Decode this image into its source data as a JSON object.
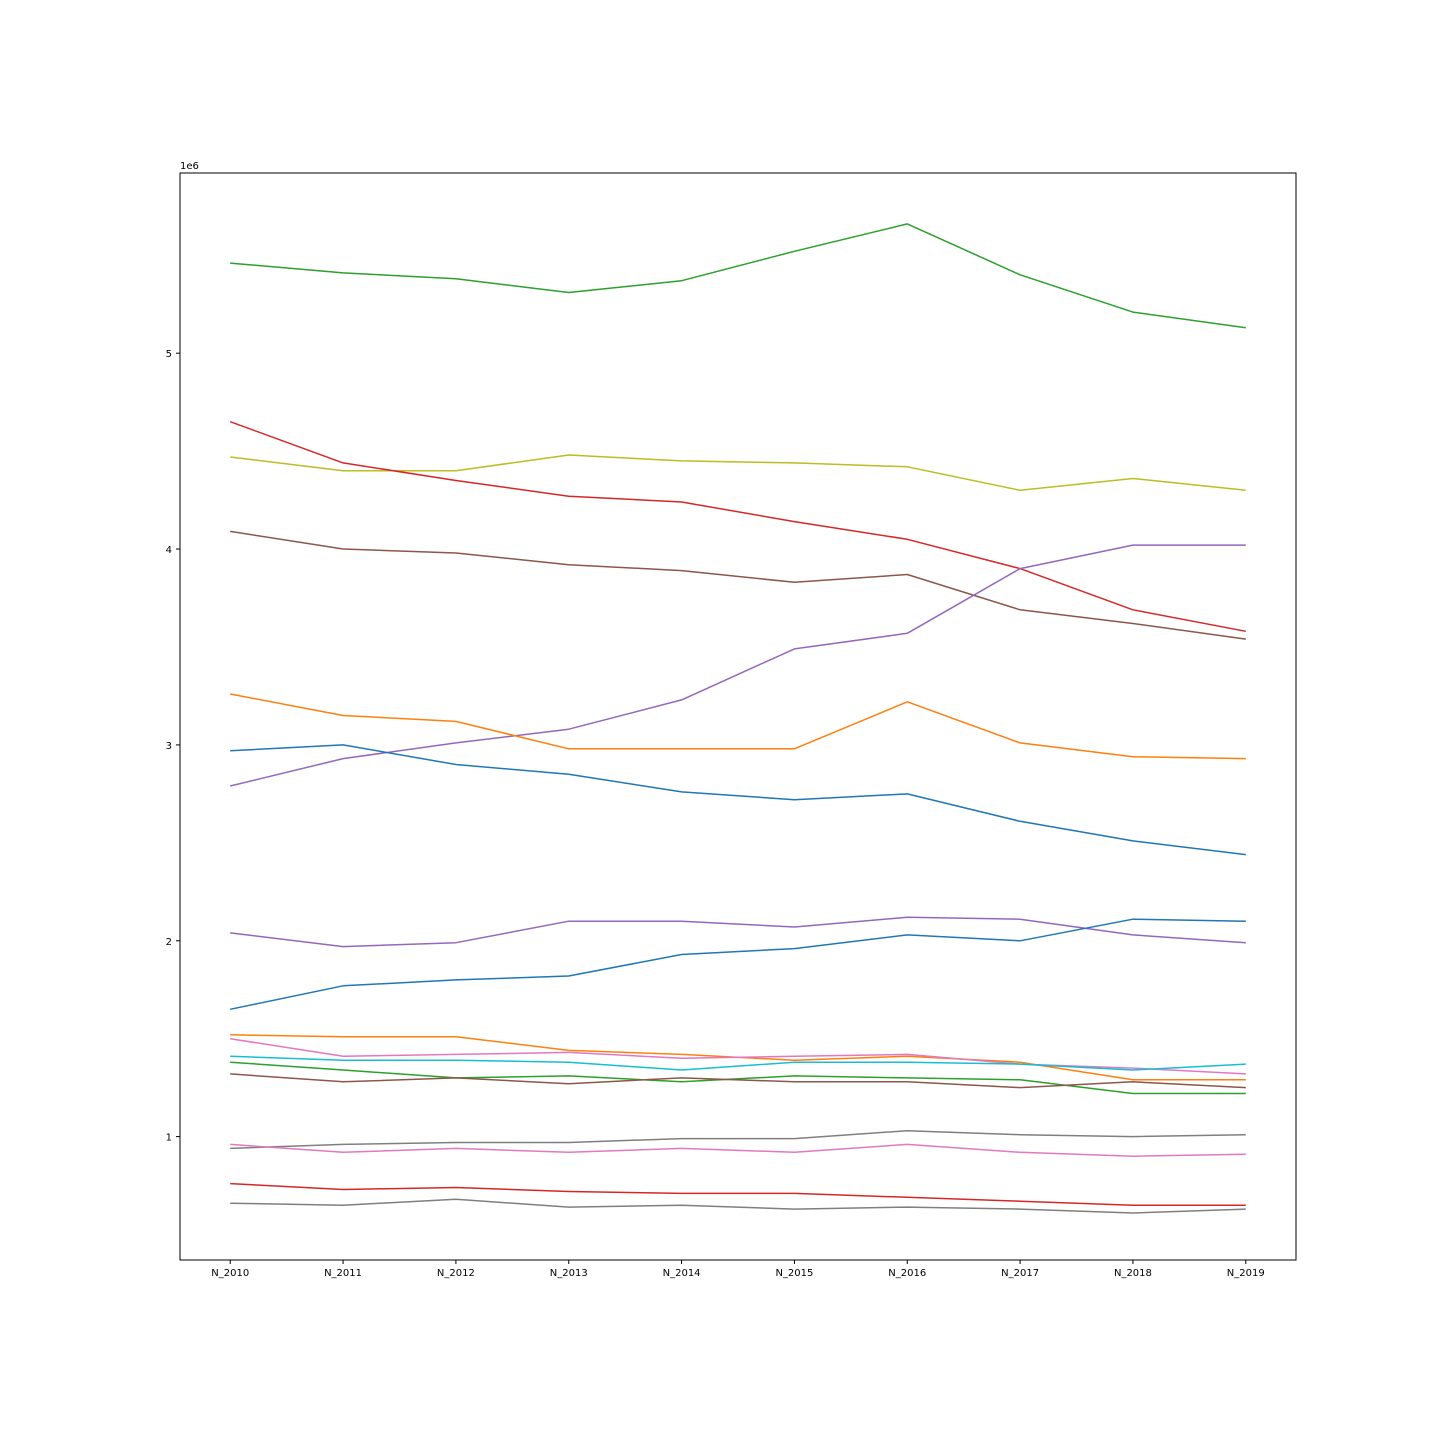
{
  "chart_data": {
    "type": "line",
    "title": "",
    "xlabel": "",
    "ylabel": "",
    "y_offset_text": "1e6",
    "y_scale": 1000000,
    "ylim": [
      0.37,
      5.92
    ],
    "yticks": [
      1,
      2,
      3,
      4,
      5
    ],
    "grid": false,
    "legend": "none",
    "categories": [
      "N_2010",
      "N_2011",
      "N_2012",
      "N_2013",
      "N_2014",
      "N_2015",
      "N_2016",
      "N_2017",
      "N_2018",
      "N_2019"
    ],
    "series": [
      {
        "color": "#2ca02c",
        "values": [
          5.46,
          5.41,
          5.38,
          5.31,
          5.37,
          5.52,
          5.66,
          5.4,
          5.21,
          5.13
        ]
      },
      {
        "color": "#bcbd22",
        "values": [
          4.47,
          4.4,
          4.4,
          4.48,
          4.45,
          4.44,
          4.42,
          4.3,
          4.36,
          4.3
        ]
      },
      {
        "color": "#d62728",
        "values": [
          4.65,
          4.44,
          4.35,
          4.27,
          4.24,
          4.14,
          4.05,
          3.9,
          3.69,
          3.58
        ]
      },
      {
        "color": "#8c564b",
        "values": [
          4.09,
          4.0,
          3.98,
          3.92,
          3.89,
          3.83,
          3.87,
          3.69,
          3.62,
          3.54
        ]
      },
      {
        "color": "#9467bd",
        "values": [
          2.79,
          2.93,
          3.01,
          3.08,
          3.23,
          3.49,
          3.57,
          3.9,
          4.02,
          4.02
        ]
      },
      {
        "color": "#ff7f0e",
        "values": [
          3.26,
          3.15,
          3.12,
          2.98,
          2.98,
          2.98,
          3.22,
          3.01,
          2.94,
          2.93
        ]
      },
      {
        "color": "#1f77b4",
        "values": [
          2.97,
          3.0,
          2.9,
          2.85,
          2.76,
          2.72,
          2.75,
          2.61,
          2.51,
          2.44
        ]
      },
      {
        "color": "#9467bd",
        "values": [
          2.04,
          1.97,
          1.99,
          2.1,
          2.1,
          2.07,
          2.12,
          2.11,
          2.03,
          1.99
        ]
      },
      {
        "color": "#1f77b4",
        "values": [
          1.65,
          1.77,
          1.8,
          1.82,
          1.93,
          1.96,
          2.03,
          2.0,
          2.11,
          2.1
        ]
      },
      {
        "color": "#ff7f0e",
        "values": [
          1.52,
          1.51,
          1.51,
          1.44,
          1.42,
          1.39,
          1.41,
          1.38,
          1.29,
          1.29
        ]
      },
      {
        "color": "#e377c2",
        "values": [
          1.5,
          1.41,
          1.42,
          1.43,
          1.4,
          1.41,
          1.42,
          1.37,
          1.35,
          1.32
        ]
      },
      {
        "color": "#17becf",
        "values": [
          1.41,
          1.39,
          1.39,
          1.38,
          1.34,
          1.38,
          1.38,
          1.37,
          1.34,
          1.37
        ]
      },
      {
        "color": "#2ca02c",
        "values": [
          1.38,
          1.34,
          1.3,
          1.31,
          1.28,
          1.31,
          1.3,
          1.29,
          1.22,
          1.22
        ]
      },
      {
        "color": "#8c564b",
        "values": [
          1.32,
          1.28,
          1.3,
          1.27,
          1.3,
          1.28,
          1.28,
          1.25,
          1.28,
          1.25
        ]
      },
      {
        "color": "#7f7f7f",
        "values": [
          0.94,
          0.96,
          0.97,
          0.97,
          0.99,
          0.99,
          1.03,
          1.01,
          1.0,
          1.01
        ]
      },
      {
        "color": "#e377c2",
        "values": [
          0.96,
          0.92,
          0.94,
          0.92,
          0.94,
          0.92,
          0.96,
          0.92,
          0.9,
          0.91
        ]
      },
      {
        "color": "#d62728",
        "values": [
          0.76,
          0.73,
          0.74,
          0.72,
          0.71,
          0.71,
          0.69,
          0.67,
          0.65,
          0.65
        ]
      },
      {
        "color": "#7f7f7f",
        "values": [
          0.66,
          0.65,
          0.68,
          0.64,
          0.65,
          0.63,
          0.64,
          0.63,
          0.61,
          0.63
        ]
      }
    ]
  }
}
